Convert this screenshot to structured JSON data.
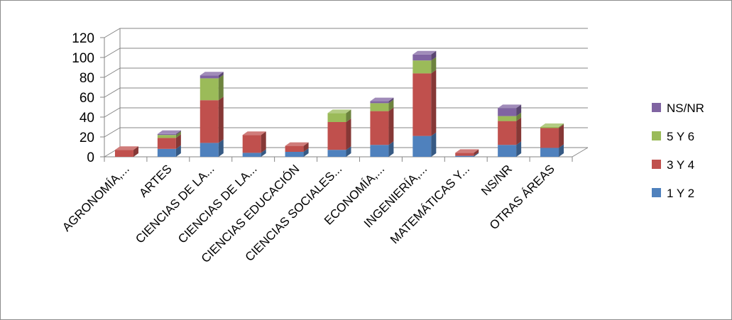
{
  "chart_data": {
    "type": "bar",
    "stacked": true,
    "three_d": true,
    "categories": [
      "AGRONOMÍA,...",
      "ARTES",
      "CIENCIAS DE LA...",
      "CIENCIAS DE LA...",
      "CIENCIAS EDUCACIÓN",
      "CIENCIAS SOCIALES...",
      "ECONOMÍA,...",
      "INGENIERÍA,...",
      "MATEMÁTICAS Y...",
      "NS/NR",
      "OTRAS ÁREAS"
    ],
    "series": [
      {
        "name": "1 Y 2",
        "color": "#4f81bd",
        "values": [
          0,
          8,
          14,
          4,
          5,
          7,
          12,
          21,
          1,
          12,
          9
        ]
      },
      {
        "name": "3 Y 4",
        "color": "#c0504d",
        "values": [
          7,
          11,
          43,
          18,
          6,
          28,
          34,
          63,
          3,
          24,
          20
        ]
      },
      {
        "name": "5 Y 6",
        "color": "#9bbb59",
        "values": [
          0,
          3,
          22,
          0,
          0,
          9,
          8,
          13,
          0,
          5,
          1
        ]
      },
      {
        "name": "NS/NR",
        "color": "#8064a2",
        "values": [
          0,
          1,
          3,
          0,
          0,
          0,
          2,
          6,
          0,
          8,
          0
        ]
      }
    ],
    "yticks": [
      0,
      20,
      40,
      60,
      80,
      100,
      120
    ],
    "ylim": [
      0,
      120
    ],
    "grid": true,
    "legend_position": "right",
    "legend_order": [
      "NS/NR",
      "5 Y 6",
      "3 Y 4",
      "1 Y 2"
    ],
    "title": "",
    "xlabel": "",
    "ylabel": ""
  }
}
